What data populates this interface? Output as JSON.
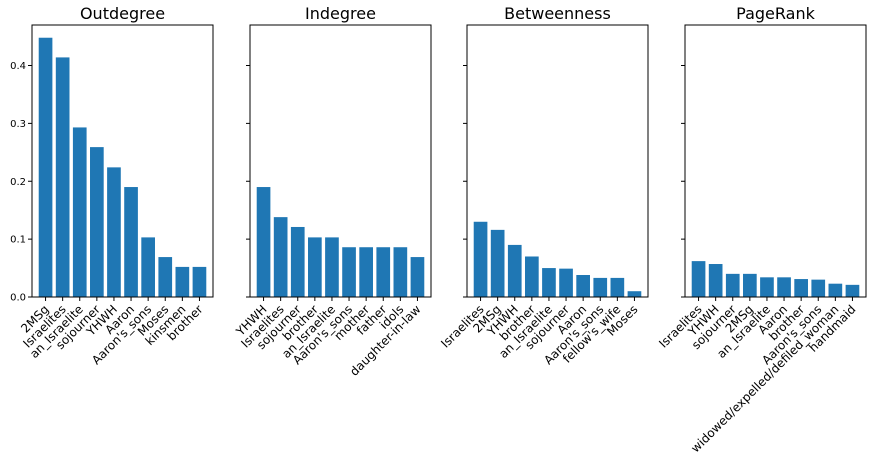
{
  "chart_data": [
    {
      "type": "bar",
      "title": "Outdegree",
      "categories": [
        "2MSg",
        "Israelites",
        "an_Israelite",
        "sojourner",
        "YHWH",
        "Aaron",
        "Aaron's_sons",
        "Moses",
        "kinsmen",
        "brother"
      ],
      "values": [
        0.448,
        0.414,
        0.293,
        0.259,
        0.224,
        0.19,
        0.103,
        0.069,
        0.052,
        0.052
      ],
      "ylim": [
        0,
        0.47
      ],
      "yticks": [
        "0.0",
        "0.1",
        "0.2",
        "0.3",
        "0.4"
      ],
      "color": "#1f77b4",
      "grid": false
    },
    {
      "type": "bar",
      "title": "Indegree",
      "categories": [
        "YHWH",
        "Israelites",
        "sojourner",
        "brother",
        "an_Israelite",
        "Aaron's_sons",
        "mother",
        "father",
        "idols",
        "daughter-in-law"
      ],
      "values": [
        0.19,
        0.138,
        0.121,
        0.103,
        0.103,
        0.086,
        0.086,
        0.086,
        0.086,
        0.069
      ],
      "ylim": [
        0,
        0.47
      ],
      "color": "#1f77b4",
      "grid": false
    },
    {
      "type": "bar",
      "title": "Betweenness",
      "categories": [
        "Israelites",
        "2MSg",
        "YHWH",
        "brother",
        "an_Israelite",
        "sojourner",
        "Aaron",
        "Aaron's_sons",
        "fellow's_wife",
        "Moses"
      ],
      "values": [
        0.13,
        0.116,
        0.09,
        0.07,
        0.05,
        0.049,
        0.038,
        0.033,
        0.033,
        0.01
      ],
      "ylim": [
        0,
        0.47
      ],
      "color": "#1f77b4",
      "grid": false
    },
    {
      "type": "bar",
      "title": "PageRank",
      "categories": [
        "Israelites",
        "YHWH",
        "sojourner",
        "2MSg",
        "an_Israelite",
        "Aaron",
        "brother",
        "Aaron's_sons",
        "widowed/expelled/defiled_woman",
        "handmaid"
      ],
      "values": [
        0.062,
        0.057,
        0.04,
        0.04,
        0.034,
        0.034,
        0.031,
        0.03,
        0.023,
        0.021
      ],
      "ylim": [
        0,
        0.47
      ],
      "color": "#1f77b4",
      "grid": false
    }
  ]
}
